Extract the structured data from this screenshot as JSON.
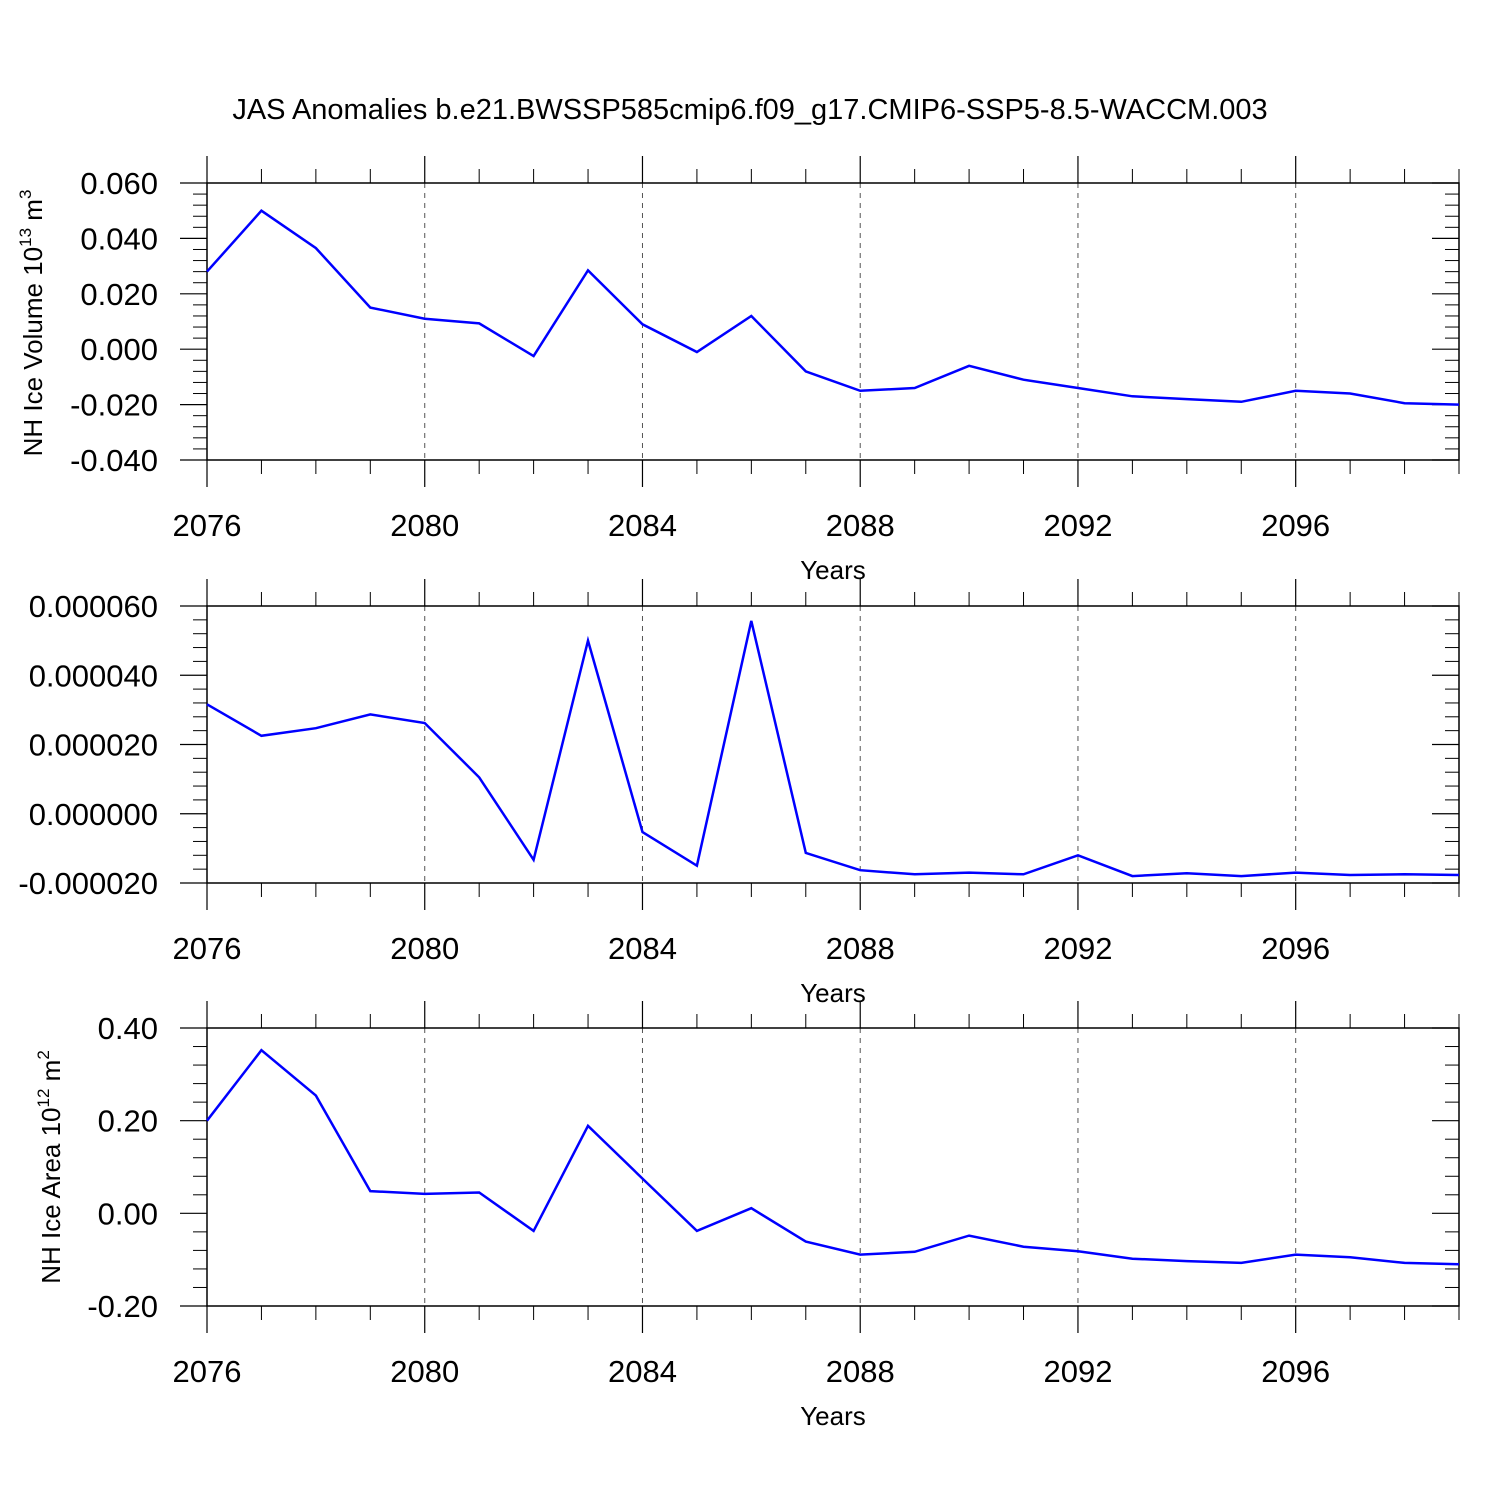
{
  "title": "JAS Anomalies b.e21.BWSSP585cmip6.f09_g17.CMIP6-SSP5-8.5-WACCM.003",
  "chart_data": [
    {
      "type": "line",
      "title": "",
      "xlabel": "Years",
      "ylabel": {
        "base": "NH Ice Volume 10",
        "exp": "13",
        "unit": " m",
        "unit_exp": "3"
      },
      "xlim": [
        2076,
        2099
      ],
      "ylim": [
        -0.04,
        0.06
      ],
      "x_ticks": [
        2076,
        2080,
        2084,
        2088,
        2092,
        2096
      ],
      "x_tick_labels": [
        "2076",
        "2080",
        "2084",
        "2088",
        "2092",
        "2096"
      ],
      "y_ticks": [
        -0.04,
        -0.02,
        0.0,
        0.02,
        0.04,
        0.06
      ],
      "y_tick_labels": [
        "-0.040",
        "-0.020",
        "0.000",
        "0.020",
        "0.040",
        "0.060"
      ],
      "grid": "vertical dashed at major x ticks",
      "line_color": "#0000ff",
      "series": [
        {
          "x": [
            2076,
            2077,
            2078,
            2079,
            2080,
            2081,
            2082,
            2083,
            2084,
            2085,
            2086,
            2087,
            2088,
            2089,
            2090,
            2091,
            2092,
            2093,
            2094,
            2095,
            2096,
            2097,
            2098,
            2099
          ],
          "values": [
            0.028,
            0.05,
            0.0365,
            0.015,
            0.011,
            0.0093,
            -0.0025,
            0.0285,
            0.009,
            -0.001,
            0.012,
            -0.008,
            -0.015,
            -0.014,
            -0.006,
            -0.011,
            -0.014,
            -0.017,
            -0.018,
            -0.019,
            -0.015,
            -0.016,
            -0.0195,
            -0.02
          ]
        }
      ]
    },
    {
      "type": "line",
      "title": "",
      "xlabel": "Years",
      "ylabel": {
        "base": "",
        "exp": "",
        "unit": "",
        "unit_exp": ""
      },
      "xlim": [
        2076,
        2099
      ],
      "ylim": [
        -2e-05,
        6e-05
      ],
      "x_ticks": [
        2076,
        2080,
        2084,
        2088,
        2092,
        2096
      ],
      "x_tick_labels": [
        "2076",
        "2080",
        "2084",
        "2088",
        "2092",
        "2096"
      ],
      "y_ticks": [
        -2e-05,
        0.0,
        2e-05,
        4e-05,
        6e-05
      ],
      "y_tick_labels": [
        "-0.000020",
        "0.000000",
        "0.000020",
        "0.000040",
        "0.000060"
      ],
      "grid": "vertical dashed at major x ticks",
      "line_color": "#0000ff",
      "series": [
        {
          "x": [
            2076,
            2077,
            2078,
            2079,
            2080,
            2081,
            2082,
            2083,
            2084,
            2085,
            2086,
            2087,
            2088,
            2089,
            2090,
            2091,
            2092,
            2093,
            2094,
            2095,
            2096,
            2097,
            2098,
            2099
          ],
          "values": [
            3.16e-05,
            2.25e-05,
            2.47e-05,
            2.87e-05,
            2.62e-05,
            1.05e-05,
            -1.33e-05,
            5e-05,
            -5.3e-06,
            -1.5e-05,
            5.57e-05,
            -1.13e-05,
            -1.63e-05,
            -1.75e-05,
            -1.7e-05,
            -1.75e-05,
            -1.2e-05,
            -1.8e-05,
            -1.72e-05,
            -1.8e-05,
            -1.7e-05,
            -1.77e-05,
            -1.75e-05,
            -1.77e-05
          ]
        }
      ]
    },
    {
      "type": "line",
      "title": "",
      "xlabel": "Years",
      "ylabel": {
        "base": "NH Ice Area 10",
        "exp": "12",
        "unit": " m",
        "unit_exp": "2"
      },
      "xlim": [
        2076,
        2099
      ],
      "ylim": [
        -0.2,
        0.4
      ],
      "x_ticks": [
        2076,
        2080,
        2084,
        2088,
        2092,
        2096
      ],
      "x_tick_labels": [
        "2076",
        "2080",
        "2084",
        "2088",
        "2092",
        "2096"
      ],
      "y_ticks": [
        -0.2,
        0.0,
        0.2,
        0.4
      ],
      "y_tick_labels": [
        "-0.20",
        "0.00",
        "0.20",
        "0.40"
      ],
      "grid": "vertical dashed at major x ticks",
      "line_color": "#0000ff",
      "series": [
        {
          "x": [
            2076,
            2077,
            2078,
            2079,
            2080,
            2081,
            2082,
            2083,
            2084,
            2085,
            2086,
            2087,
            2088,
            2089,
            2090,
            2091,
            2092,
            2093,
            2094,
            2095,
            2096,
            2097,
            2098,
            2099
          ],
          "values": [
            0.2,
            0.352,
            0.254,
            0.048,
            0.042,
            0.045,
            -0.038,
            0.189,
            0.075,
            -0.038,
            0.011,
            -0.061,
            -0.089,
            -0.083,
            -0.048,
            -0.072,
            -0.082,
            -0.098,
            -0.103,
            -0.107,
            -0.089,
            -0.095,
            -0.107,
            -0.11
          ]
        }
      ]
    }
  ]
}
